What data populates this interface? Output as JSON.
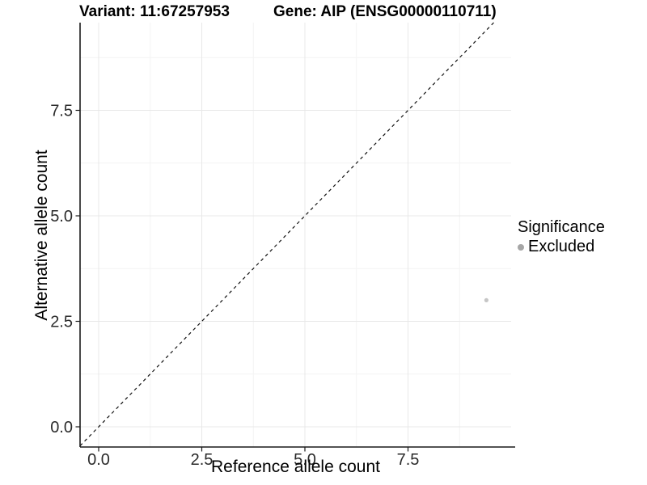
{
  "chart_data": {
    "type": "scatter",
    "title_left": "Variant: 11:67257953",
    "title_right": "Gene: AIP (ENSG00000110711)",
    "xlabel": "Reference allele count",
    "ylabel": "Alternative allele count",
    "x_tick_values": [
      0,
      2.5,
      5,
      7.5
    ],
    "x_tick_labels": [
      "0.0",
      "2.5",
      "5.0",
      "7.5"
    ],
    "y_tick_values": [
      0,
      2.5,
      5,
      7.5
    ],
    "y_tick_labels": [
      "0.0",
      "2.5",
      "5.0",
      "7.5"
    ],
    "minor_tick_values": [
      1.25,
      3.75,
      6.25,
      8.75
    ],
    "xlim": [
      -0.45,
      10.0
    ],
    "ylim": [
      -0.48,
      9.58
    ],
    "grid": "on",
    "identity_line": {
      "slope": 1,
      "intercept": 0,
      "style": "dashed",
      "color": "#111111"
    },
    "points": [
      {
        "x": 9.4,
        "y": 3.0,
        "significance": "Excluded",
        "color": "#c6c6c6",
        "radius": 2.6
      }
    ],
    "legend": {
      "position": "right",
      "title": "Significance",
      "items": [
        {
          "label": "Excluded",
          "color": "#a6a6a6"
        }
      ]
    },
    "colors": {
      "axis": "#1a1a1a",
      "tick_label": "#2b2b2b",
      "grid_major": "#e8e8e8",
      "grid_minor": "#f4f4f4"
    }
  }
}
